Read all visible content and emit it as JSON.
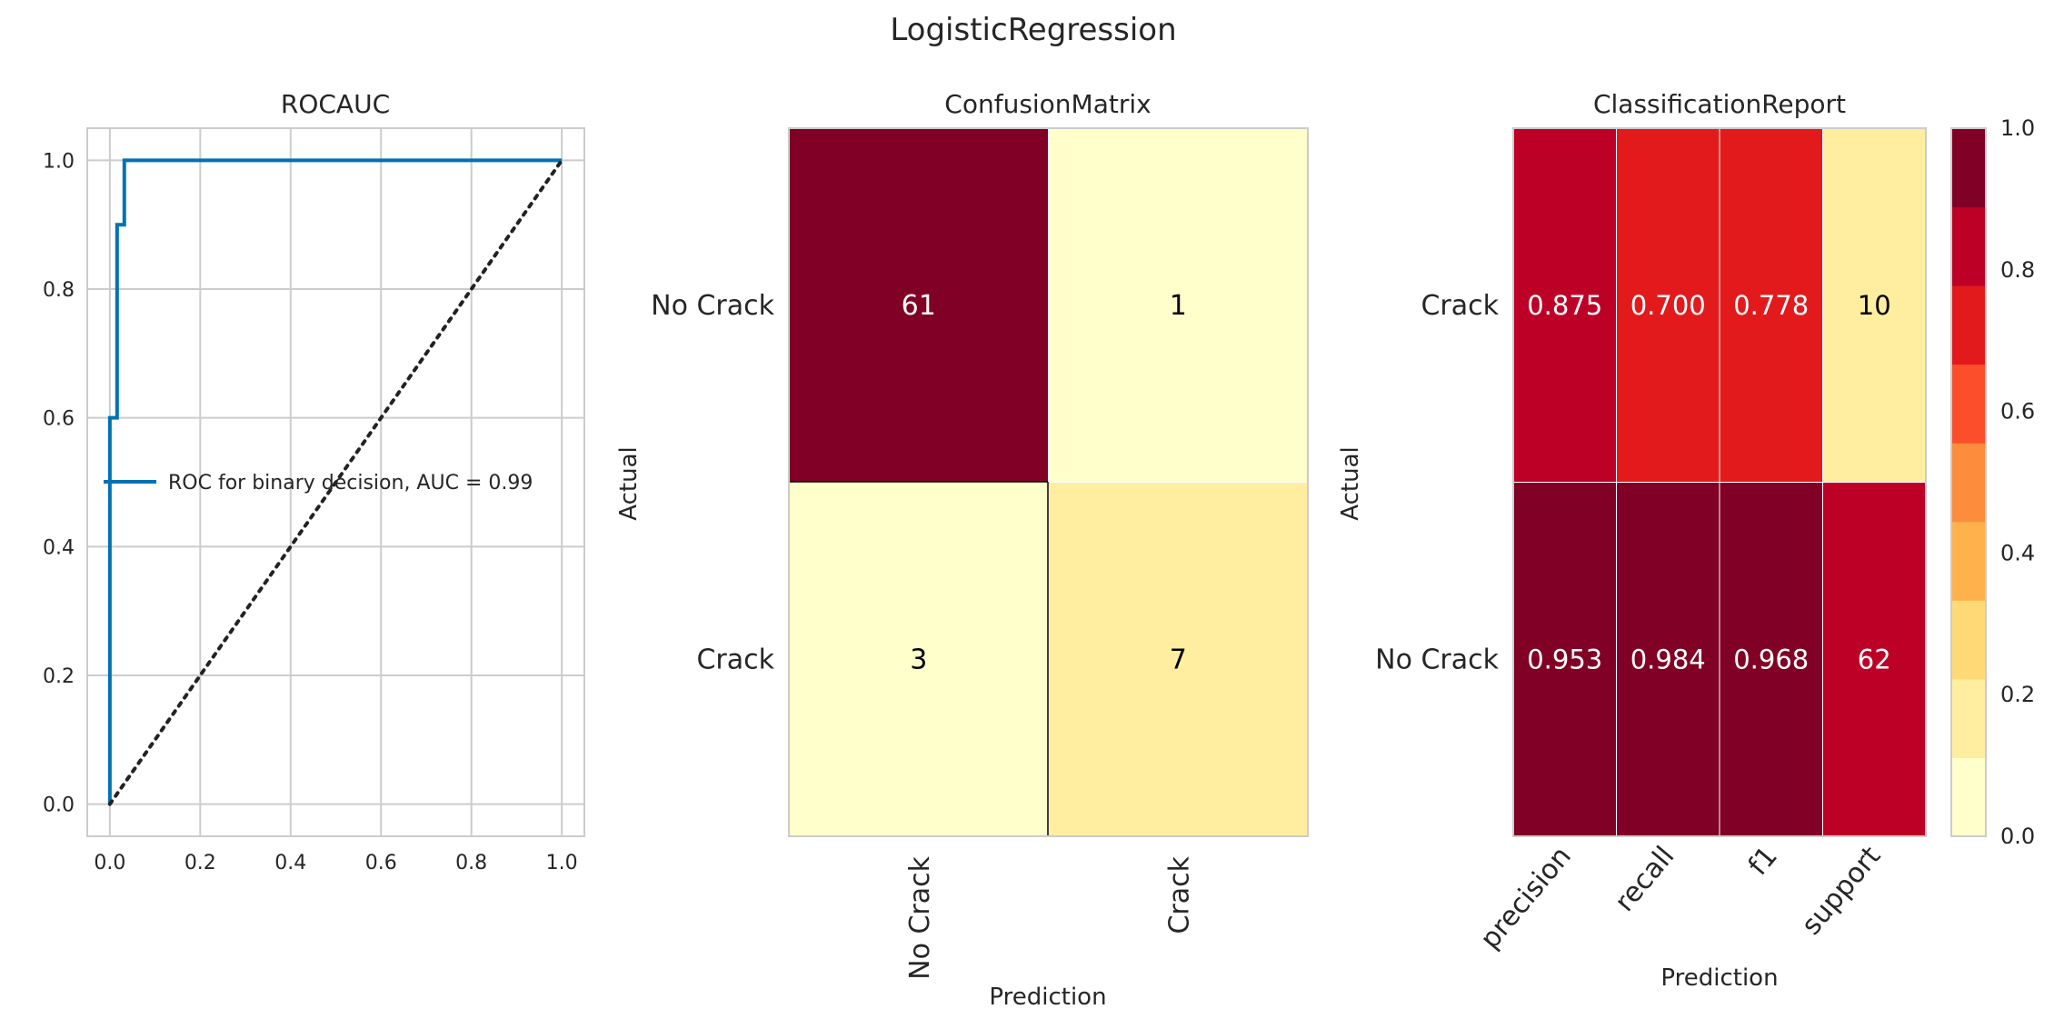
{
  "figure_title": "LogisticRegression",
  "chart_data": [
    {
      "type": "line",
      "title": "ROCAUC",
      "xlabel": "",
      "ylabel": "",
      "xlim": [
        -0.05,
        1.05
      ],
      "ylim": [
        -0.05,
        1.05
      ],
      "xticks": [
        "0.0",
        "0.2",
        "0.4",
        "0.6",
        "0.8",
        "1.0"
      ],
      "yticks": [
        "0.0",
        "0.2",
        "0.4",
        "0.6",
        "0.8",
        "1.0"
      ],
      "grid": true,
      "legend_position": "center-right",
      "series": [
        {
          "name": "ROC for binary decision, AUC = 0.99",
          "color": "#0072b2",
          "style": "solid",
          "x": [
            0.0,
            0.0,
            0.016,
            0.016,
            0.032,
            0.032,
            1.0
          ],
          "y": [
            0.0,
            0.6,
            0.6,
            0.9,
            0.9,
            1.0,
            1.0
          ]
        },
        {
          "color": "#222222",
          "style": "dotted",
          "x": [
            0.0,
            1.0
          ],
          "y": [
            0.0,
            1.0
          ]
        }
      ]
    },
    {
      "type": "heatmap",
      "title": "ConfusionMatrix",
      "xlabel": "Prediction",
      "ylabel": "Actual",
      "x_categories": [
        "No Crack",
        "Crack"
      ],
      "y_categories": [
        "No Crack",
        "Crack"
      ],
      "values": [
        [
          61,
          1
        ],
        [
          3,
          7
        ]
      ],
      "cell_colors": [
        [
          "#800026",
          "#ffffcc"
        ],
        [
          "#ffffcc",
          "#ffeda0"
        ]
      ],
      "text_colors": [
        [
          "#ffffff",
          "#000000"
        ],
        [
          "#000000",
          "#000000"
        ]
      ]
    },
    {
      "type": "heatmap",
      "title": "ClassificationReport",
      "xlabel": "Prediction",
      "ylabel": "Actual",
      "x_categories": [
        "precision",
        "recall",
        "f1",
        "support"
      ],
      "y_categories": [
        "Crack",
        "No Crack"
      ],
      "values": [
        [
          "0.875",
          "0.700",
          "0.778",
          "10"
        ],
        [
          "0.953",
          "0.984",
          "0.968",
          "62"
        ]
      ],
      "cell_colors": [
        [
          "#bd0026",
          "#e31a1c",
          "#e31a1c",
          "#ffeda0"
        ],
        [
          "#800026",
          "#800026",
          "#800026",
          "#bd0026"
        ]
      ],
      "text_colors": [
        [
          "#ffffff",
          "#ffffff",
          "#ffffff",
          "#000000"
        ],
        [
          "#ffffff",
          "#ffffff",
          "#ffffff",
          "#ffffff"
        ]
      ],
      "colorbar": {
        "range": [
          0.0,
          1.0
        ],
        "ticks": [
          "0.0",
          "0.2",
          "0.4",
          "0.6",
          "0.8",
          "1.0"
        ],
        "colors": [
          "#ffffcc",
          "#ffeda0",
          "#fed976",
          "#feb24c",
          "#fd8d3c",
          "#fc4e2a",
          "#e31a1c",
          "#bd0026",
          "#800026"
        ]
      }
    }
  ]
}
